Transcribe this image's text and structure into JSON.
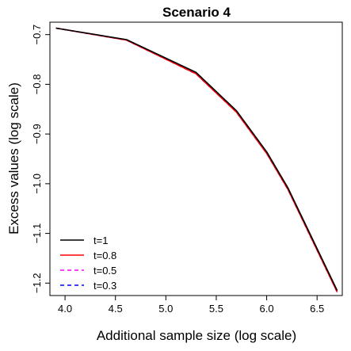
{
  "chart_data": {
    "type": "line",
    "title": "Scenario 4",
    "xlabel": "Additional sample size (log scale)",
    "ylabel": "Excess values (log scale)",
    "xlim": [
      3.85,
      6.75
    ],
    "ylim": [
      -1.225,
      -0.675
    ],
    "xticks": [
      4.0,
      4.5,
      5.0,
      5.5,
      6.0,
      6.5
    ],
    "xtick_labels": [
      "4.0",
      "4.5",
      "5.0",
      "5.5",
      "6.0",
      "6.5"
    ],
    "yticks": [
      -0.7,
      -0.8,
      -0.9,
      -1.0,
      -1.1,
      -1.2
    ],
    "ytick_labels": [
      "−0.7",
      "−0.8",
      "−0.9",
      "−1.0",
      "−1.1",
      "−1.2"
    ],
    "grid": false,
    "legend_position": "bottom-left",
    "x": [
      3.91,
      4.61,
      5.3,
      5.7,
      6.0,
      6.21,
      6.7
    ],
    "series": [
      {
        "name": "t=1",
        "color": "#000000",
        "dash": "solid",
        "values": [
          -0.687,
          -0.71,
          -0.776,
          -0.853,
          -0.936,
          -1.008,
          -1.215
        ]
      },
      {
        "name": "t=0.8",
        "color": "#ff0000",
        "dash": "solid",
        "values": [
          -0.687,
          -0.711,
          -0.779,
          -0.856,
          -0.939,
          -1.011,
          -1.218
        ]
      },
      {
        "name": "t=0.5",
        "color": "#ff00ff",
        "dash": "dashed",
        "values": [
          -0.687,
          -0.711,
          -0.779,
          -0.856,
          -0.939,
          -1.011,
          -1.218
        ]
      },
      {
        "name": "t=0.3",
        "color": "#0000ff",
        "dash": "dashed",
        "values": [
          -0.687,
          -0.711,
          -0.779,
          -0.856,
          -0.939,
          -1.011,
          -1.218
        ]
      }
    ]
  }
}
